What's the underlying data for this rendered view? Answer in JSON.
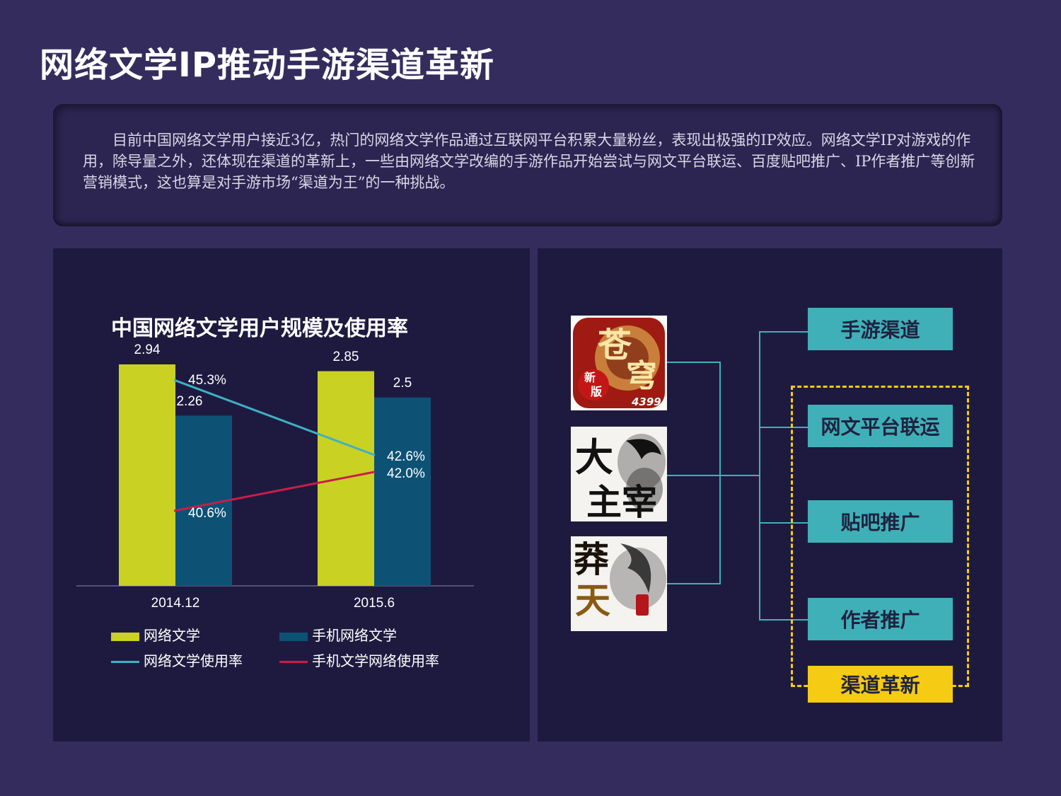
{
  "page": {
    "title": "网络文学IP推动手游渠道革新",
    "intro": "目前中国网络文学用户接近3亿，热门的网络文学作品通过互联网平台积累大量粉丝，表现出极强的IP效应。网络文学IP对游戏的作用，除导量之外，还体现在渠道的革新上，一些由网络文学改编的手游作品开始尝试与网文平台联运、百度贴吧推广、IP作者推广等创新营销模式，这也算是对手游市场“渠道为王”的一种挑战。"
  },
  "chart_data": {
    "type": "bar",
    "title": "中国网络文学用户规模及使用率",
    "categories": [
      "2014.12",
      "2015.6"
    ],
    "bar_series": [
      {
        "name": "网络文学",
        "values": [
          2.94,
          2.85
        ],
        "labels": [
          "2.94",
          "2.85"
        ],
        "color": "#c9d122"
      },
      {
        "name": "手机网络文学",
        "values": [
          2.26,
          2.5
        ],
        "labels": [
          "2.26",
          "2.5"
        ],
        "color": "#0d5275"
      }
    ],
    "line_series": [
      {
        "name": "网络文学使用率",
        "values": [
          45.3,
          42.6
        ],
        "labels": [
          "45.3%",
          "42.6%"
        ],
        "color": "#3fb0c4"
      },
      {
        "name": "手机文学网络使用率",
        "values": [
          40.6,
          42.0
        ],
        "labels": [
          "40.6%",
          "42.0%"
        ],
        "color": "#c81d4a"
      }
    ],
    "legend_position": "bottom"
  },
  "diagram": {
    "games": [
      {
        "icon": "cangqiong-game-icon",
        "badge": "4399"
      },
      {
        "icon": "dazhuzai-game-icon"
      },
      {
        "icon": "mangtianji-game-icon"
      }
    ],
    "channels": [
      {
        "label": "手游渠道",
        "color": "#3fb0b8"
      },
      {
        "label": "网文平台联运",
        "color": "#3fb0b8"
      },
      {
        "label": "贴吧推广",
        "color": "#3fb0b8"
      },
      {
        "label": "作者推广",
        "color": "#3fb0b8"
      }
    ],
    "group_label": "渠道革新",
    "group_color": "#f5cb14"
  }
}
